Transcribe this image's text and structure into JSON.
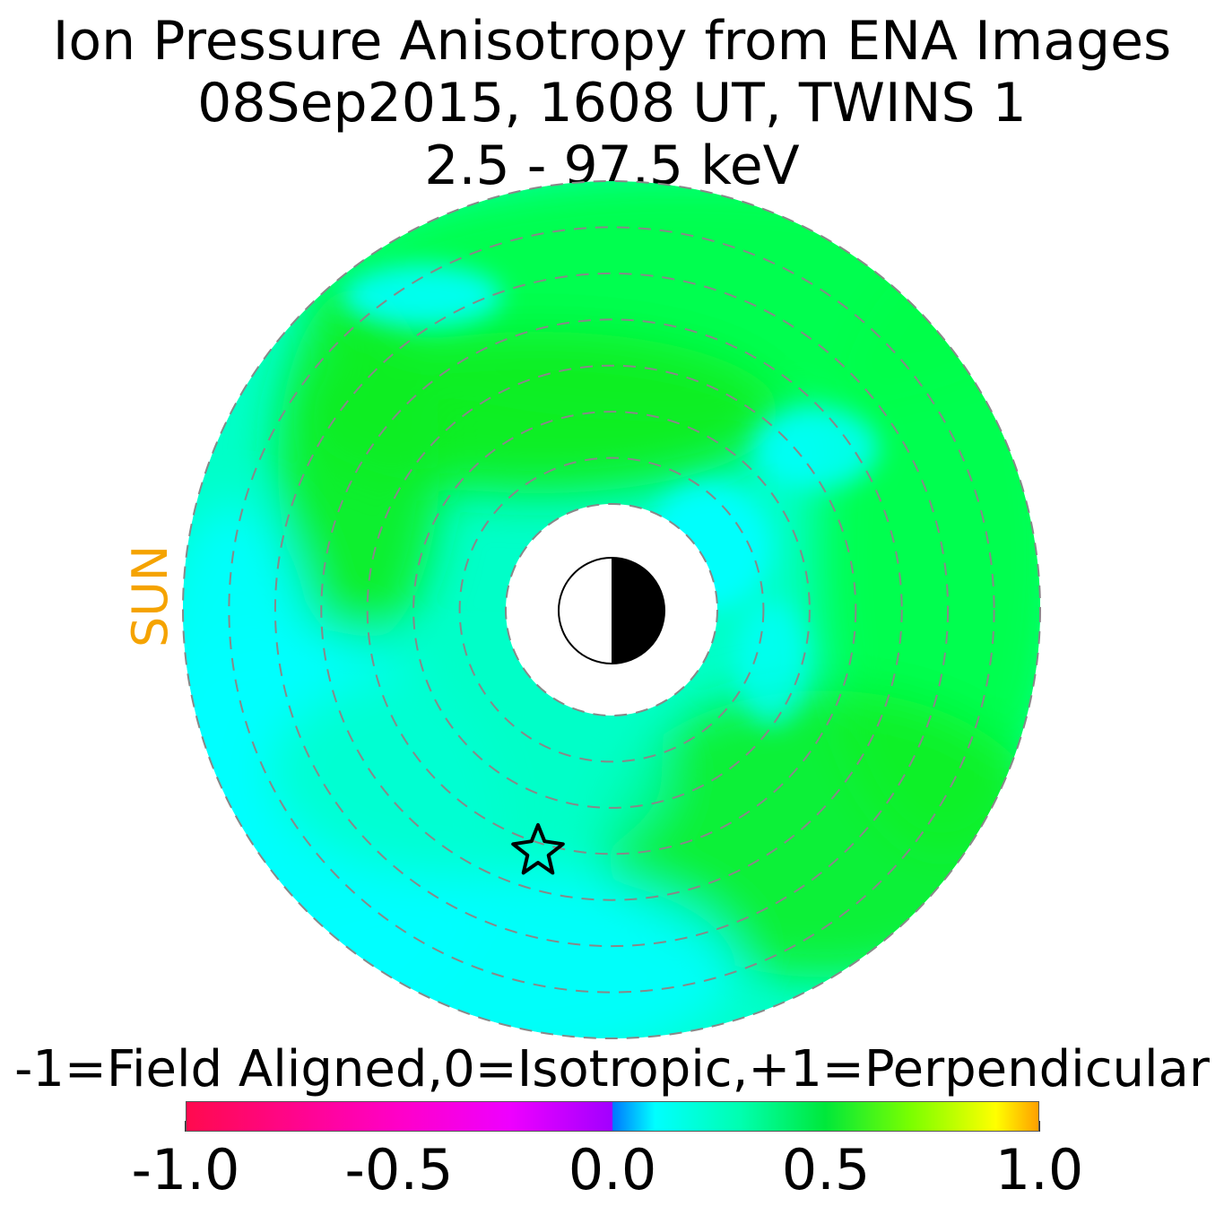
{
  "title": {
    "line1": "Ion Pressure Anisotropy from  ENA Images",
    "line2": "08Sep2015, 1608 UT,  TWINS 1",
    "line3": "2.5 - 97.5 keV"
  },
  "sun_label": "SUN",
  "colorbar": {
    "caption": "-1=Field Aligned,0=Isotropic,+1=Perpendicular",
    "range": [
      -1.0,
      1.0
    ],
    "tick_labels": [
      "-1.0",
      "-0.5",
      "0.0",
      "0.5",
      "1.0"
    ],
    "tick_values": [
      -1.0,
      -0.5,
      0.0,
      0.5,
      1.0
    ],
    "colors": {
      "neg_1": "#ff0a4e",
      "neg_0_5": "#ff00c8",
      "neg_0_2": "#ee00ff",
      "zero_left": "#a200ff",
      "zero_right": "#0078ff",
      "p_0_1": "#00ffff",
      "p_0_3": "#00ffb0",
      "p_0_5": "#00e83a",
      "p_0_7": "#7aff00",
      "p_0_9": "#ffff00",
      "p_1": "#ffa000"
    }
  },
  "chart_data": {
    "type": "heatmap",
    "projection": "polar equatorial map, sun to the left",
    "value_range": [
      -1.0,
      1.0
    ],
    "dominant_value_range": [
      0.1,
      0.55
    ],
    "dashed_ring_count": 8,
    "inner_region": "white (no data) around Earth",
    "earth_symbol": "half dayside white (left), nightside black (right)",
    "star_marker": "satellite position, lower left of Earth",
    "colors": {
      "cyan": "#00ffff",
      "aqua": "#00ffc8",
      "green": "#00ff4a",
      "bright_green": "#10ee20",
      "ring_dash": "#888888"
    }
  }
}
